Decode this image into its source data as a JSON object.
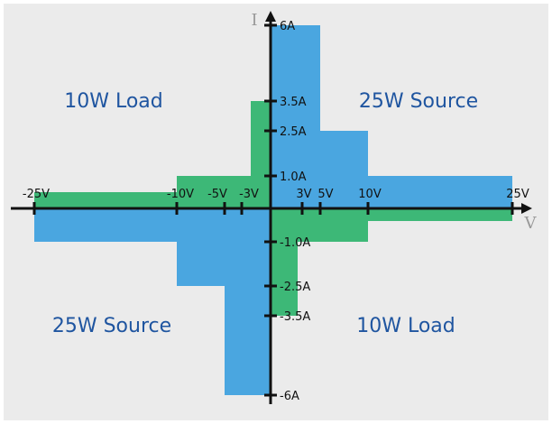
{
  "axes": {
    "y_label": "I",
    "x_label": "V"
  },
  "x_ticks": [
    "-25V",
    "-10V",
    "-5V",
    "-3V",
    "3V",
    "5V",
    "10V",
    "25V"
  ],
  "y_ticks": [
    "6A",
    "3.5A",
    "2.5A",
    "1.0A",
    "-1.0A",
    "-2.5A",
    "-3.5A",
    "-6A"
  ],
  "regions": [
    "10W Load",
    "25W Source",
    "25W Source",
    "10W Load"
  ]
}
